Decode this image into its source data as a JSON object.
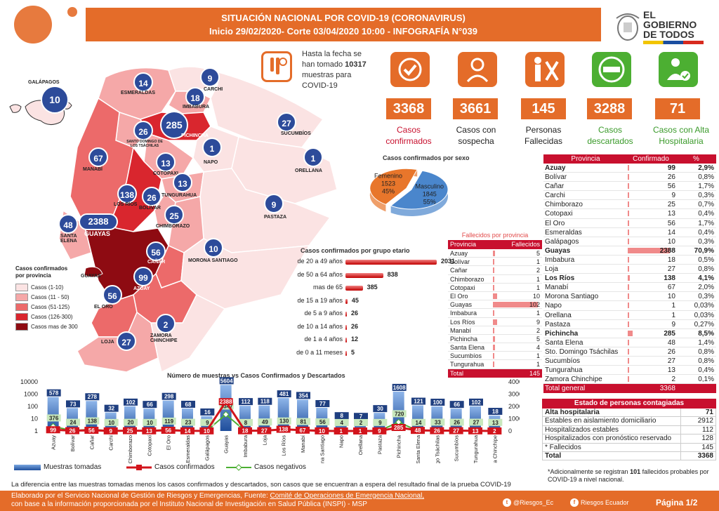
{
  "header": {
    "line1": "SITUACIÓN NACIONAL POR  COVID-19 (CORONAVIRUS)",
    "line2": "Inicio 29/02/2020- Corte 03/04/2020 10:00  - INFOGRAFÍA N°039"
  },
  "gov": {
    "line1": "EL",
    "line2": "GOBIERNO",
    "line3": "DE TODOS"
  },
  "samples": {
    "line1": "Hasta la fecha se",
    "line2": "han tomado ",
    "count": "10317",
    "line3": "muestras  para",
    "line4": "COVID-19"
  },
  "kpis": [
    {
      "value": "3368",
      "label_1": "Casos",
      "label_2": "confirmados",
      "color": "#c8102e",
      "icon": "check-icon"
    },
    {
      "value": "3661",
      "label_1": "Casos con",
      "label_2": "sospecha",
      "color": "#222222",
      "icon": "doctor-icon"
    },
    {
      "value": "145",
      "label_1": "Personas",
      "label_2": "Fallecidas",
      "color": "#222222",
      "icon": "person-x-icon"
    },
    {
      "value": "3288",
      "label_1": "Casos",
      "label_2": "descartados",
      "color": "#3a9a2a",
      "icon": "minus-icon"
    },
    {
      "value": "71",
      "label_1": "Casos con Alta",
      "label_2": "Hospitalaria",
      "color": "#3a9a2a",
      "icon": "person-check-icon"
    }
  ],
  "map": {
    "provinces": [
      {
        "name": "ESMERALDAS",
        "value": "14"
      },
      {
        "name": "CARCHI",
        "value": "9"
      },
      {
        "name": "IMBABURA",
        "value": "18"
      },
      {
        "name": "PICHINCHA",
        "value": "285"
      },
      {
        "name": "SANTO DOMINGO DE LOS TSÁCHILAS",
        "value": "26"
      },
      {
        "name": "SUCUMBÍOS",
        "value": "27"
      },
      {
        "name": "MANABÍ",
        "value": "67"
      },
      {
        "name": "NAPO",
        "value": "1"
      },
      {
        "name": "ORELLANA",
        "value": "1"
      },
      {
        "name": "COTOPAXI",
        "value": "13"
      },
      {
        "name": "TUNGURAHUA",
        "value": "13"
      },
      {
        "name": "LOS RÍOS",
        "value": "138"
      },
      {
        "name": "BOLÍVAR",
        "value": "26"
      },
      {
        "name": "PASTAZA",
        "value": "9"
      },
      {
        "name": "CHIMBORAZO",
        "value": "25"
      },
      {
        "name": "SANTA ELENA",
        "value": "48"
      },
      {
        "name": "GUAYAS",
        "value": "2388"
      },
      {
        "name": "CAÑAR",
        "value": "56"
      },
      {
        "name": "MORONA SANTIAGO",
        "value": "10"
      },
      {
        "name": "AZUAY",
        "value": "99"
      },
      {
        "name": "EL ORO",
        "value": "56"
      },
      {
        "name": "ZAMORA CHINCHIPE",
        "value": "2"
      },
      {
        "name": "LOJA",
        "value": "27"
      },
      {
        "name": "GALÁPAGOS",
        "value": "10"
      }
    ],
    "extra_label": "GUAYAS"
  },
  "legend": {
    "title_1": "Casos confirmados",
    "title_2": "por provincia",
    "items": [
      {
        "label": "Casos (1-10)",
        "color": "#fbe3e3"
      },
      {
        "label": "Casos (11 - 50)",
        "color": "#f5a8a8"
      },
      {
        "label": "Casos (51-125)",
        "color": "#ec6a6a"
      },
      {
        "label": "Casos (126-300)",
        "color": "#d9262e"
      },
      {
        "label": "Casos mas de 300",
        "color": "#8e0b12"
      }
    ]
  },
  "chart_data": [
    {
      "type": "pie",
      "title": "Casos confirmados por sexo",
      "slices": [
        {
          "label": "Masculino",
          "value": 1845,
          "percent": "55%",
          "color": "#4a86cc"
        },
        {
          "label": "Femenino",
          "value": 1523,
          "percent": "45%",
          "color": "#e8762b"
        }
      ]
    },
    {
      "type": "bar",
      "title": "Casos confirmados por grupo etario",
      "categories": [
        "de 20 a 49 años",
        "de 50 a 64 años",
        "mas de 65",
        "de 15 a 19 años",
        "de 5 a 9 años",
        "de 10 a 14 años",
        "de 1 a 4 años",
        "de 0 a 11 meses"
      ],
      "values": [
        2031,
        838,
        385,
        45,
        26,
        26,
        12,
        5
      ]
    },
    {
      "type": "bar",
      "title": "Número de muestras vs Casos Confirmados y Descartados",
      "categories": [
        "Azuay",
        "Bolívar",
        "Cañar",
        "Carchi",
        "Chimborazo",
        "Cotopaxi",
        "El Oro",
        "Esmeraldas",
        "Galápagos",
        "Guayas",
        "Imbabura",
        "Loja",
        "Los Ríos",
        "Manabí",
        "Morona Santiago",
        "Napo",
        "Orellana",
        "Pastaza",
        "Pichincha",
        "Santa Elena",
        "Sto. Domingo Tsáchilas",
        "Sucumbíos",
        "Tungurahua",
        "Zamora Chinchipe"
      ],
      "series": [
        {
          "name": "Muestras tomadas",
          "values": [
            578,
            73,
            278,
            32,
            102,
            66,
            298,
            68,
            16,
            5604,
            112,
            118,
            481,
            354,
            77,
            8,
            7,
            30,
            1608,
            121,
            100,
            66,
            102,
            18
          ]
        },
        {
          "name": "Casos confirmados",
          "values": [
            99,
            26,
            56,
            9,
            25,
            13,
            56,
            14,
            10,
            2388,
            18,
            27,
            138,
            67,
            10,
            1,
            1,
            9,
            285,
            48,
            26,
            27,
            13,
            2
          ]
        },
        {
          "name": "Casos negativos",
          "values": [
            376,
            24,
            138,
            10,
            20,
            10,
            119,
            23,
            9,
            1347,
            8,
            49,
            130,
            81,
            56,
            4,
            2,
            9,
            720,
            14,
            33,
            26,
            27,
            13
          ]
        }
      ],
      "y_left_ticks": [
        "10000",
        "1000",
        "100",
        "10",
        "1"
      ],
      "y_right_ticks": [
        "4000",
        "3000",
        "2000",
        "1000",
        "0"
      ],
      "ylim_left": [
        1,
        10000
      ],
      "ylim_right": [
        0,
        4000
      ],
      "log_scale_left": true
    }
  ],
  "deaths_table": {
    "title": "Fallecidos por provincia",
    "headers": [
      "Provincia",
      "Fallecidos"
    ],
    "rows": [
      {
        "province": "Azuay",
        "value": 5
      },
      {
        "province": "Bolívar",
        "value": 1
      },
      {
        "province": "Cañar",
        "value": 2
      },
      {
        "province": "Chimborazo",
        "value": 1
      },
      {
        "province": "Cotopaxi",
        "value": 1
      },
      {
        "province": "El Oro",
        "value": 10
      },
      {
        "province": "Guayas",
        "value": 102
      },
      {
        "province": "Imbabura",
        "value": 1
      },
      {
        "province": "Los Ríos",
        "value": 9
      },
      {
        "province": "Manabí",
        "value": 2
      },
      {
        "province": "Pichincha",
        "value": 5
      },
      {
        "province": "Santa Elena",
        "value": 4
      },
      {
        "province": "Sucumbíos",
        "value": 1
      },
      {
        "province": "Tungurahua",
        "value": 1
      }
    ],
    "total_label": "Total",
    "total_value": "145"
  },
  "province_table": {
    "headers": [
      "Provincia",
      "Confirmado",
      "%"
    ],
    "rows": [
      {
        "province": "Azuay",
        "value": 99,
        "pct": "2,9%",
        "bold": true
      },
      {
        "province": "Bolívar",
        "value": 26,
        "pct": "0,8%"
      },
      {
        "province": "Cañar",
        "value": 56,
        "pct": "1,7%"
      },
      {
        "province": "Carchi",
        "value": 9,
        "pct": "0,3%"
      },
      {
        "province": "Chimborazo",
        "value": 25,
        "pct": "0,7%"
      },
      {
        "province": "Cotopaxi",
        "value": 13,
        "pct": "0,4%"
      },
      {
        "province": "El Oro",
        "value": 56,
        "pct": "1,7%"
      },
      {
        "province": "Esmeraldas",
        "value": 14,
        "pct": "0,4%"
      },
      {
        "province": "Galápagos",
        "value": 10,
        "pct": "0,3%"
      },
      {
        "province": "Guayas",
        "value": 2388,
        "pct": "70,9%",
        "bold": true
      },
      {
        "province": "Imbabura",
        "value": 18,
        "pct": "0,5%"
      },
      {
        "province": "Loja",
        "value": 27,
        "pct": "0,8%"
      },
      {
        "province": "Los Ríos",
        "value": 138,
        "pct": "4,1%",
        "bold": true
      },
      {
        "province": "Manabí",
        "value": 67,
        "pct": "2,0%"
      },
      {
        "province": "Morona Santiago",
        "value": 10,
        "pct": "0,3%"
      },
      {
        "province": "Napo",
        "value": 1,
        "pct": "0,03%"
      },
      {
        "province": "Orellana",
        "value": 1,
        "pct": "0,03%"
      },
      {
        "province": "Pastaza",
        "value": 9,
        "pct": "0,27%"
      },
      {
        "province": "Pichincha",
        "value": 285,
        "pct": "8,5%",
        "bold": true
      },
      {
        "province": "Santa Elena",
        "value": 48,
        "pct": "1,4%"
      },
      {
        "province": "Sto. Domingo Tsáchilas",
        "value": 26,
        "pct": "0,8%"
      },
      {
        "province": "Sucumbíos",
        "value": 27,
        "pct": "0,8%"
      },
      {
        "province": "Tungurahua",
        "value": 13,
        "pct": "0,4%"
      },
      {
        "province": "Zamora Chinchipe",
        "value": 2,
        "pct": "0,1%"
      }
    ],
    "total_label": "Total general",
    "total_value": "3368"
  },
  "state_table": {
    "title": "Estado de personas contagiadas",
    "rows": [
      {
        "label": "Alta hospitalaria",
        "value": "71",
        "bold": true
      },
      {
        "label": "Estables en aislamiento domiciliario",
        "value": "2912"
      },
      {
        "label": "Hospitalizados estables",
        "value": "112"
      },
      {
        "label": "Hospitalizados con pronóstico reservado",
        "value": "128"
      },
      {
        "label": "* Fallecidos",
        "value": "145"
      },
      {
        "label": "Total",
        "value": "3368",
        "bold": true
      }
    ],
    "note_1": "*Adicionalmente se registran ",
    "note_bold": "101",
    "note_2": " fallecidos probables por COVID-19 a nivel nacional."
  },
  "footnote": "La diferencia entre las muestras tomadas menos los casos confirmados y descartados, son casos que se encuentran a espera del resultado final de la prueba COVID-19",
  "footer": {
    "source_1": "Elaborado por el Servicio Nacional de Gestión de Riesgos y Emergencias, Fuente: ",
    "source_1_u": "Comité de Operaciones de Emergencia Nacional,",
    "source_2": "con base a la información proporcionada por el Instituto Nacional de Investigación en Salud Pública (INSPI) - MSP",
    "twitter": "@Riesgos_Ec",
    "facebook": "Riesgos Ecuador",
    "page": "Página 1/2"
  },
  "colors": {
    "brand": "#e46c29",
    "table_red": "#c8102e",
    "bubble": "#2d4b9a"
  }
}
